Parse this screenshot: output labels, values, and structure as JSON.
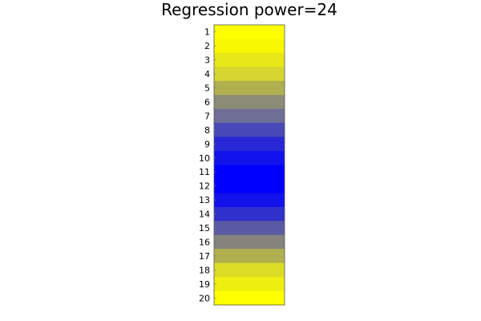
{
  "chart_data": {
    "type": "heatmap",
    "title": "Regression power=24",
    "xlabel": "",
    "ylabel": "",
    "rows": [
      "1",
      "2",
      "3",
      "4",
      "5",
      "6",
      "7",
      "8",
      "9",
      "10",
      "11",
      "12",
      "13",
      "14",
      "15",
      "16",
      "17",
      "18",
      "19",
      "20"
    ],
    "colors": [
      "#ffff00",
      "#f8f803",
      "#e8e818",
      "#d6d630",
      "#b0b04e",
      "#8c8c76",
      "#6e6e96",
      "#4848b8",
      "#2828d8",
      "#1212ec",
      "#0000ff",
      "#0000ff",
      "#1212ec",
      "#3030cc",
      "#5a5aa4",
      "#84847c",
      "#b0b04e",
      "#dcdc24",
      "#eeee10",
      "#ffff00"
    ],
    "grid": false,
    "colorbar": false
  }
}
